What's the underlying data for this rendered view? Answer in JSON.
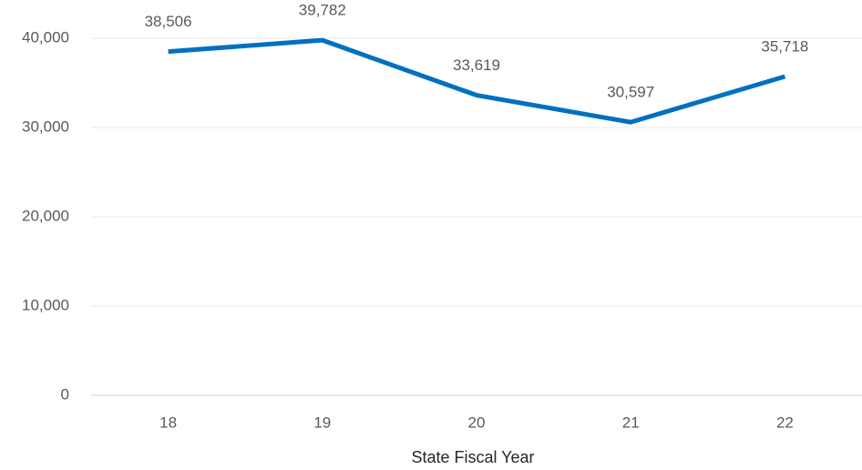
{
  "chart_data": {
    "type": "line",
    "x_label": "State Fiscal Year",
    "categories": [
      "18",
      "19",
      "20",
      "21",
      "22"
    ],
    "values": [
      38506,
      39782,
      33619,
      30597,
      35718
    ],
    "value_labels": [
      "38,506",
      "39,782",
      "33,619",
      "30,597",
      "35,718"
    ],
    "color": "#0070c0",
    "ylim": [
      0,
      40000
    ],
    "yticks": [
      0,
      {
        "value": 10000,
        "label": "10,000"
      },
      {
        "value": 20000,
        "label": "20,000"
      },
      {
        "value": 30000,
        "label": "30,000"
      },
      {
        "value": 40000,
        "label": "40,000"
      }
    ],
    "grid": true
  }
}
